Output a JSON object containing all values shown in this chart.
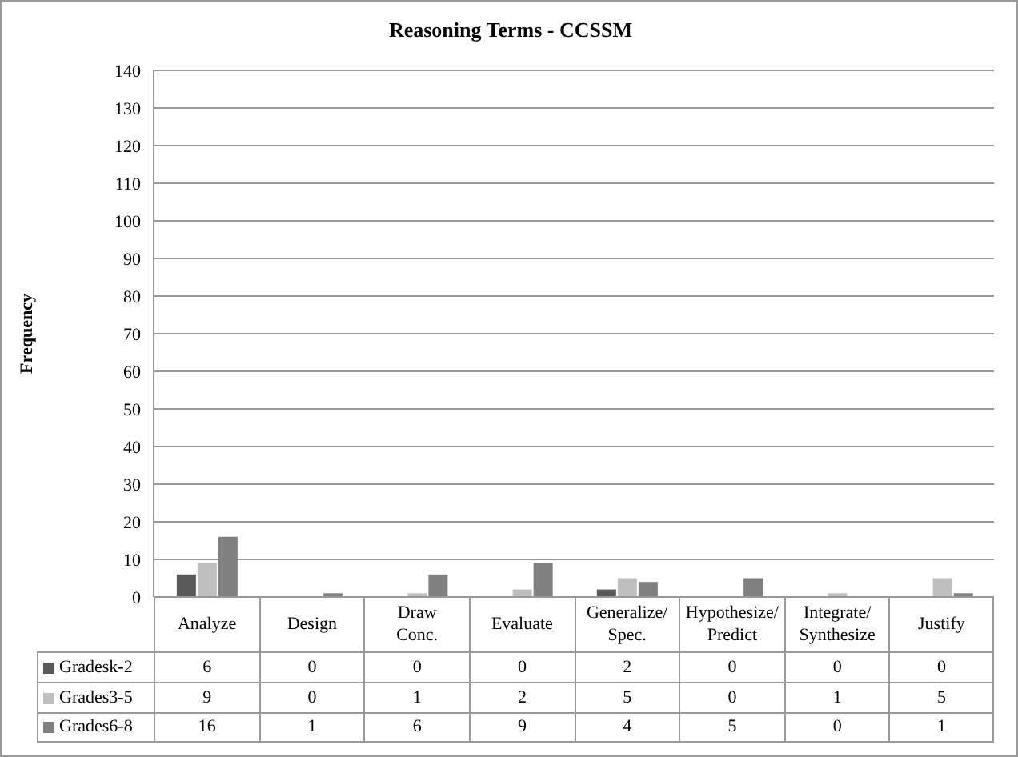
{
  "chart_data": {
    "type": "bar",
    "title": "Reasoning Terms - CCSSM",
    "ylabel": "Frequency",
    "categories": [
      "Analyze",
      "Design",
      "Draw Conc.",
      "Evaluate",
      "Generalize/Spec.",
      "Hypothesize/Predict",
      "Integrate/Synthesize",
      "Justify"
    ],
    "series": [
      {
        "name": "Gradesk-2",
        "color": "#595959",
        "values": [
          6,
          0,
          0,
          0,
          2,
          0,
          0,
          0
        ]
      },
      {
        "name": "Grades3-5",
        "color": "#bfbfbf",
        "values": [
          9,
          0,
          1,
          2,
          5,
          0,
          1,
          5
        ]
      },
      {
        "name": "Grades6-8",
        "color": "#808080",
        "values": [
          16,
          1,
          6,
          9,
          4,
          5,
          0,
          1
        ]
      }
    ],
    "ylim": [
      0,
      140
    ],
    "yticks": [
      0,
      10,
      20,
      30,
      40,
      50,
      60,
      70,
      80,
      90,
      100,
      110,
      120,
      130,
      140
    ],
    "grid": "y",
    "legend": "bottom",
    "data_labels": true
  }
}
